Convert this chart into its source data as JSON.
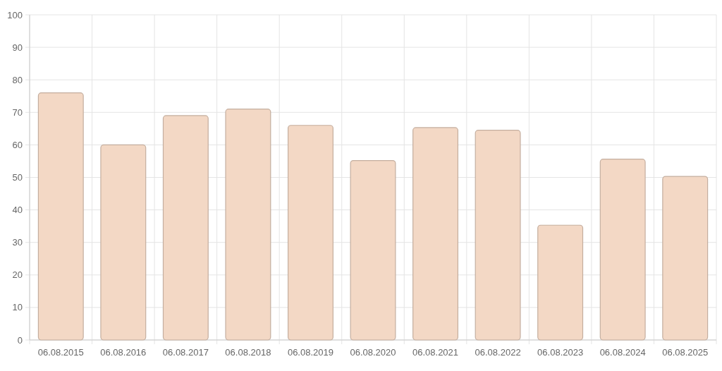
{
  "chart_data": {
    "type": "bar",
    "categories": [
      "06.08.2015",
      "06.08.2016",
      "06.08.2017",
      "06.08.2018",
      "06.08.2019",
      "06.08.2020",
      "06.08.2021",
      "06.08.2022",
      "06.08.2023",
      "06.08.2024",
      "06.08.2025"
    ],
    "values": [
      76,
      60,
      69,
      71,
      66,
      55.2,
      65.3,
      64.5,
      35.3,
      55.6,
      50.3
    ],
    "color": "#f3d8c5",
    "ylim": [
      0,
      100
    ],
    "yticks": [
      0,
      10,
      20,
      30,
      40,
      50,
      60,
      70,
      80,
      90,
      100
    ],
    "grid": true
  }
}
